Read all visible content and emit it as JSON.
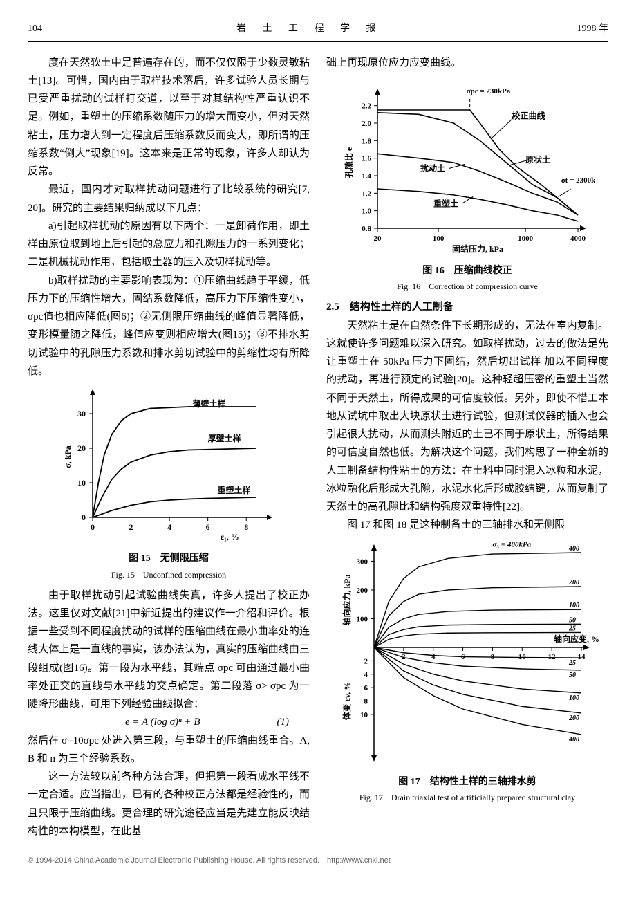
{
  "header": {
    "page_number": "104",
    "journal_title": "岩 土 工 程 学 报",
    "year": "1998 年"
  },
  "left_column": {
    "p1": "度在天然软土中是普遍存在的，而不仅仅限于少数灵敏粘土[13]。可惜，国内由于取样技术落后，许多试验人员长期与已受严重扰动的试样打交道，以至于对其结构性严重认识不足。例如，重塑土的压缩系数随压力的增大而变小，但对天然粘土，压力增大到一定程度后压缩系数反而变大，即所谓的压缩系数“倒大”现象[19]。这本来是正常的现象，许多人却认为反常。",
    "p2": "最近，国内才对取样扰动问题进行了比较系统的研究[7, 20]。研究的主要结果归纳成以下几点：",
    "p3": "a)引起取样扰动的原因有以下两个：一是卸荷作用，即土样由原位取到地上后引起的总应力和孔隙压力的一系列变化；二是机械扰动作用，包括取土器的压入及切样扰动等。",
    "p4": "b)取样扰动的主要影响表现为：①压缩曲线趋于平缓，低压力下的压缩性增大，固结系数降低，高压力下压缩性变小，σpc值也相应降低(图6)；②无侧限压缩曲线的峰值显著降低，变形模量随之降低，峰值应变则相应增大(图15)；③不排水剪切试验中的孔隙压力系数和排水剪切试验中的剪缩性均有所降低。",
    "fig15": {
      "type": "line",
      "caption_cn": "图 15　无侧限压缩",
      "caption_en": "Fig. 15　Unconfined compression",
      "xlabel": "ε₁, %",
      "ylabel": "σ, kPa",
      "xlim": [
        0,
        9
      ],
      "xtick_step": 2,
      "ylim": [
        0,
        35
      ],
      "ytick_major": [
        0,
        10,
        20,
        30
      ],
      "background_color": "#ffffff",
      "axis_color": "#000000",
      "line_color": "#000000",
      "line_width": 1.5,
      "series": [
        {
          "label": "薄壁土样",
          "label_pos": [
            5.2,
            32
          ],
          "points": [
            [
              0,
              0
            ],
            [
              0.3,
              10
            ],
            [
              0.6,
              18
            ],
            [
              1.0,
              24
            ],
            [
              1.5,
              28
            ],
            [
              2.0,
              30
            ],
            [
              3.0,
              31.5
            ],
            [
              5.0,
              32
            ],
            [
              8.5,
              32
            ]
          ]
        },
        {
          "label": "厚壁土样",
          "label_pos": [
            6.0,
            22
          ],
          "points": [
            [
              0,
              0
            ],
            [
              0.5,
              6
            ],
            [
              1.0,
              11
            ],
            [
              1.5,
              14
            ],
            [
              2.0,
              16
            ],
            [
              3.0,
              18
            ],
            [
              4.0,
              19
            ],
            [
              5.0,
              19.5
            ],
            [
              8.5,
              20
            ]
          ]
        },
        {
          "label": "重塑土样",
          "label_pos": [
            6.5,
            7
          ],
          "points": [
            [
              0,
              0
            ],
            [
              1.0,
              2
            ],
            [
              2.0,
              3.5
            ],
            [
              3.0,
              4.5
            ],
            [
              4.0,
              5
            ],
            [
              5.0,
              5.3
            ],
            [
              6.0,
              5.5
            ],
            [
              8.5,
              5.8
            ]
          ]
        }
      ]
    },
    "p5": "由于取样扰动引起试验曲线失真，许多人提出了校正办法。这里仅对文献[21]中新近提出的建议作一介绍和评价。根据一些受到不同程度扰动的试样的压缩曲线在最小曲率处的连线大体上是一直线的事实，该办法认为，真实的压缩曲线由三段组成(图16)。第一段为水平线，其端点 σpc 可由通过最小曲率处正交的直线与水平线的交点确定。第二段落 σ> σpc 为一陡降形曲线，可用下列经验曲线拟合：",
    "equation": {
      "expr": "e = A (log σ)ⁿ + B",
      "num": "(1)"
    },
    "p6_noindent": "然后在 σ=10σpc 处进入第三段，与重塑土的压缩曲线重合。A, B 和 n 为三个经验系数。",
    "p7": "这一方法较以前各种方法合理，但把第一段看成水平线不一定合适。应当指出，已有的各种校正方法都是经验性的，而且只限于压缩曲线。更合理的研究途径应当是先建立能反映结构性的本构模型，在此基"
  },
  "right_column": {
    "p1_noindent": "础上再现原位应力应变曲线。",
    "fig16": {
      "type": "semilogx-line",
      "caption_cn": "图 16　压缩曲线校正",
      "caption_en": "Fig. 16　Correction of compression curve",
      "xlabel": "固结压力, kPa",
      "ylabel": "孔隙比 e",
      "xlim_log": [
        20,
        4000
      ],
      "xticks": [
        20,
        100,
        1000,
        4000
      ],
      "ylim": [
        0.8,
        2.3
      ],
      "yticks": [
        0.8,
        1.0,
        1.2,
        1.4,
        1.6,
        1.8,
        2.0,
        2.2
      ],
      "annotations": {
        "sigma_pc": "σpc = 230kPa",
        "sigma_t": "σt = 2300kPa"
      },
      "curve_labels": [
        "校正曲线",
        "原状土",
        "扰动土",
        "重塑土"
      ],
      "background_color": "#ffffff",
      "axis_color": "#000000",
      "line_width": 1.5,
      "series": [
        {
          "label": "校正曲线",
          "points": [
            [
              20,
              2.15
            ],
            [
              100,
              2.15
            ],
            [
              230,
              2.15
            ],
            [
              300,
              2.0
            ],
            [
              500,
              1.7
            ],
            [
              800,
              1.5
            ],
            [
              1500,
              1.3
            ],
            [
              2300,
              1.15
            ],
            [
              4000,
              0.95
            ]
          ]
        },
        {
          "label": "原状土",
          "points": [
            [
              20,
              2.12
            ],
            [
              60,
              2.1
            ],
            [
              150,
              2.0
            ],
            [
              300,
              1.8
            ],
            [
              600,
              1.55
            ],
            [
              1200,
              1.3
            ],
            [
              2300,
              1.15
            ],
            [
              4000,
              0.95
            ]
          ]
        },
        {
          "label": "扰动土",
          "points": [
            [
              20,
              1.65
            ],
            [
              60,
              1.6
            ],
            [
              150,
              1.55
            ],
            [
              300,
              1.45
            ],
            [
              600,
              1.33
            ],
            [
              1200,
              1.2
            ],
            [
              2300,
              1.1
            ],
            [
              4000,
              0.95
            ]
          ]
        },
        {
          "label": "重塑土",
          "points": [
            [
              20,
              1.25
            ],
            [
              60,
              1.22
            ],
            [
              150,
              1.18
            ],
            [
              300,
              1.13
            ],
            [
              600,
              1.07
            ],
            [
              1200,
              1.0
            ],
            [
              2300,
              0.95
            ],
            [
              4000,
              0.88
            ]
          ]
        }
      ]
    },
    "section_title": "2.5　结构性土样的人工制备",
    "p2": "天然粘土是在自然条件下长期形成的，无法在室内复制。这就使许多问题难以深入研究。如取样扰动，过去的做法是先让重塑土在 50kPa 压力下固结，然后切出试样 加以不同程度的扰动，再进行预定的试验[20]。这种轻超压密的重塑土当然不同于天然土，所得成果的可信度较低。另外，即使不惜工本地从试坑中取出大块原状土进行试验，但测试仪器的插入也会引起很大扰动，从而测头附近的土已不同于原状土，所得结果的可信度自然也低。为解决这个问题，我们构思了一种全新的人工制备结构性粘土的方法：在土料中同时混入冰粒和水泥，冰粒融化后形成大孔隙，水泥水化后形成胶结键，从而复制了天然土的高孔隙比和结构强度双重特性[22]。",
    "p3": "图 17 和图 18 是这种制备土的三轴排水和无侧限",
    "fig17": {
      "type": "line",
      "caption_cn": "图 17　结构性土样的三轴排水剪",
      "caption_en": "Fig. 17　Drain triaxial test of artificially prepared structural clay",
      "xlabel_top": "轴向应力, kPa",
      "xlabel_right": "轴向应变, %",
      "ylabel_bottom": "体变 εv, %",
      "x_strain": [
        0,
        2,
        4,
        6,
        8,
        10,
        12,
        14
      ],
      "top_ylim": [
        0,
        330
      ],
      "top_yticks": [
        0,
        100,
        200,
        300
      ],
      "bot_ylim": [
        0,
        16
      ],
      "bot_yticks": [
        2,
        4,
        6,
        8,
        10
      ],
      "sigma3_labels": [
        "25",
        "50",
        "100",
        "200",
        "400"
      ],
      "sigma3_title": "σ₃ = 400kPa",
      "line_color": "#000000",
      "line_width": 1.2,
      "stress_series": [
        {
          "s3": "400",
          "points": [
            [
              0,
              0
            ],
            [
              1,
              160
            ],
            [
              2,
              240
            ],
            [
              3,
              280
            ],
            [
              5,
              310
            ],
            [
              8,
              325
            ],
            [
              14,
              330
            ]
          ]
        },
        {
          "s3": "200",
          "points": [
            [
              0,
              0
            ],
            [
              1,
              110
            ],
            [
              2,
              160
            ],
            [
              3,
              185
            ],
            [
              5,
              200
            ],
            [
              8,
              208
            ],
            [
              14,
              212
            ]
          ]
        },
        {
          "s3": "100",
          "points": [
            [
              0,
              0
            ],
            [
              1,
              70
            ],
            [
              2,
              100
            ],
            [
              3,
              115
            ],
            [
              5,
              125
            ],
            [
              8,
              130
            ],
            [
              14,
              132
            ]
          ]
        },
        {
          "s3": "50",
          "points": [
            [
              0,
              0
            ],
            [
              1,
              45
            ],
            [
              2,
              62
            ],
            [
              3,
              72
            ],
            [
              5,
              78
            ],
            [
              8,
              80
            ],
            [
              14,
              81
            ]
          ]
        },
        {
          "s3": "25",
          "points": [
            [
              0,
              0
            ],
            [
              1,
              28
            ],
            [
              2,
              40
            ],
            [
              3,
              46
            ],
            [
              5,
              50
            ],
            [
              8,
              51
            ],
            [
              14,
              52
            ]
          ]
        }
      ],
      "vol_series": [
        {
          "s3": "25",
          "points": [
            [
              0,
              0
            ],
            [
              2,
              0.8
            ],
            [
              4,
              1.2
            ],
            [
              6,
              1.4
            ],
            [
              10,
              1.5
            ],
            [
              14,
              1.55
            ]
          ]
        },
        {
          "s3": "50",
          "points": [
            [
              0,
              0
            ],
            [
              2,
              1.5
            ],
            [
              4,
              2.3
            ],
            [
              6,
              2.8
            ],
            [
              10,
              3.2
            ],
            [
              14,
              3.4
            ]
          ]
        },
        {
          "s3": "100",
          "points": [
            [
              0,
              0
            ],
            [
              2,
              2.5
            ],
            [
              4,
              4.0
            ],
            [
              6,
              5.0
            ],
            [
              10,
              6.2
            ],
            [
              14,
              6.8
            ]
          ]
        },
        {
          "s3": "200",
          "points": [
            [
              0,
              0
            ],
            [
              2,
              3.5
            ],
            [
              4,
              5.6
            ],
            [
              6,
              7.0
            ],
            [
              10,
              8.8
            ],
            [
              14,
              9.8
            ]
          ]
        },
        {
          "s3": "400",
          "points": [
            [
              0,
              0
            ],
            [
              2,
              4.5
            ],
            [
              4,
              7.2
            ],
            [
              6,
              9.2
            ],
            [
              10,
              11.5
            ],
            [
              14,
              13.0
            ]
          ]
        }
      ]
    }
  },
  "footer": "© 1994-2014 China Academic Journal Electronic Publishing House. All rights reserved.　http://www.cnki.net"
}
